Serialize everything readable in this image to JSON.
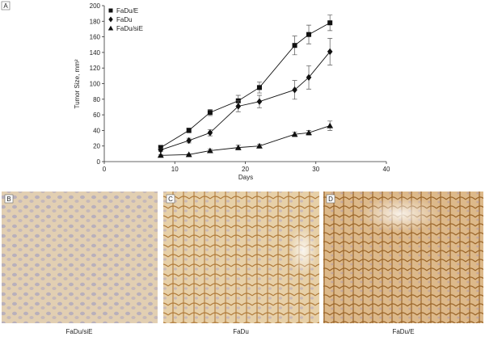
{
  "chart_data": {
    "type": "line",
    "panel_label": "A",
    "x_label": "Days",
    "y_label": "Tumor Size, mm²",
    "x": [
      8,
      12,
      15,
      19,
      22,
      27,
      29,
      32
    ],
    "series": [
      {
        "name": "FaDu/E",
        "color": "#111111",
        "marker": "square",
        "values": [
          18,
          40,
          63,
          78,
          95,
          149,
          163,
          178
        ],
        "errors": [
          3,
          3,
          4,
          7,
          7,
          12,
          12,
          10
        ]
      },
      {
        "name": "FaDu",
        "color": "#111111",
        "marker": "diamond",
        "values": [
          15,
          27,
          37,
          71,
          77,
          92,
          108,
          141
        ],
        "errors": [
          2,
          3,
          4,
          7,
          8,
          12,
          15,
          17
        ]
      },
      {
        "name": "FaDu/siE",
        "color": "#111111",
        "marker": "triangle",
        "values": [
          8,
          9,
          14,
          18,
          20,
          35,
          37,
          46
        ],
        "errors": [
          1,
          1,
          2,
          3,
          2,
          3,
          3,
          6
        ]
      }
    ],
    "xlim": [
      0,
      40
    ],
    "xticks": [
      0,
      10,
      20,
      30,
      40
    ],
    "ylim": [
      0,
      200
    ],
    "yticks": [
      0,
      20,
      40,
      60,
      80,
      100,
      120,
      140,
      160,
      180,
      200
    ],
    "legend": "upper-left"
  },
  "panels": [
    {
      "label": "B",
      "caption": "FaDu/siE"
    },
    {
      "label": "C",
      "caption": "FaDu"
    },
    {
      "label": "D",
      "caption": "FaDu/E"
    }
  ]
}
